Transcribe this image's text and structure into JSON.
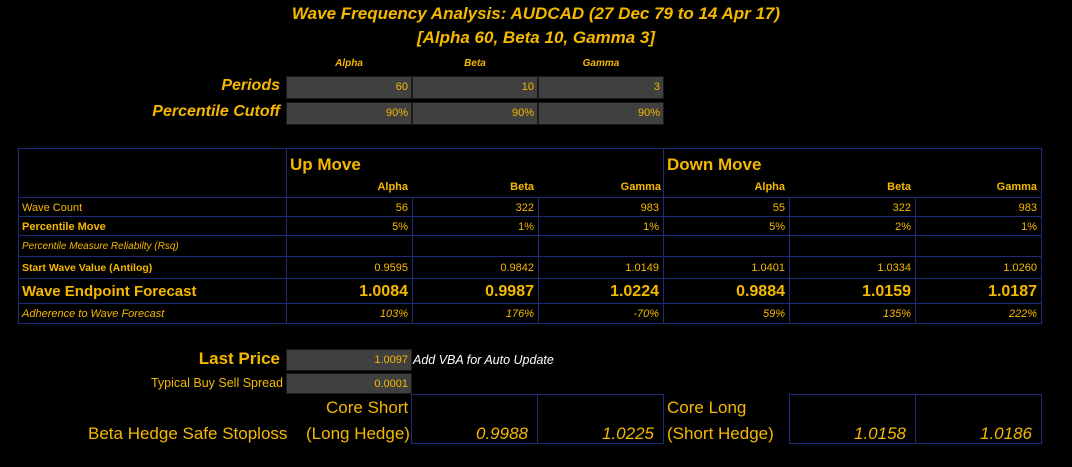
{
  "title": {
    "line1": "Wave Frequency Analysis: AUDCAD (27 Dec 79 to 14 Apr 17)",
    "line2": "[Alpha 60, Beta 10, Gamma 3]"
  },
  "params": {
    "col_headers": [
      "Alpha",
      "Beta",
      "Gamma"
    ],
    "periods_label": "Periods",
    "periods": [
      "60",
      "10",
      "3"
    ],
    "cutoff_label": "Percentile Cutoff",
    "cutoff": [
      "90%",
      "90%",
      "90%"
    ]
  },
  "table": {
    "up_title": "Up Move",
    "down_title": "Down Move",
    "col_headers": [
      "Alpha",
      "Beta",
      "Gamma",
      "Alpha",
      "Beta",
      "Gamma"
    ],
    "rows": [
      {
        "label": "Wave Count",
        "values": [
          "56",
          "322",
          "983",
          "55",
          "322",
          "983"
        ]
      },
      {
        "label": "Percentile Move",
        "values": [
          "5%",
          "1%",
          "1%",
          "5%",
          "2%",
          "1%"
        ]
      },
      {
        "label": "Percentile Measure Reliabilty (Rsq)",
        "values": [
          "",
          "",
          "",
          "",
          "",
          ""
        ]
      },
      {
        "label": "Start Wave Value (Antilog)",
        "values": [
          "0.9595",
          "0.9842",
          "1.0149",
          "1.0401",
          "1.0334",
          "1.0260"
        ]
      },
      {
        "label": "Wave Endpoint Forecast",
        "values": [
          "1.0084",
          "0.9987",
          "1.0224",
          "0.9884",
          "1.0159",
          "1.0187"
        ]
      },
      {
        "label": "Adherence to Wave Forecast",
        "values": [
          "103%",
          "176%",
          "-70%",
          "59%",
          "135%",
          "222%"
        ]
      }
    ]
  },
  "price": {
    "last_label": "Last Price",
    "last_value": "1.0097",
    "vba_note": "Add VBA for Auto Update",
    "spread_label": "Typical Buy Sell Spread",
    "spread_value": "0.0001"
  },
  "stoploss": {
    "label": "Beta Hedge Safe Stoploss",
    "core_short": "Core Short",
    "long_hedge": "(Long Hedge)",
    "short_values": [
      "0.9988",
      "1.0225"
    ],
    "core_long": "Core Long",
    "short_hedge": "(Short Hedge)",
    "long_values": [
      "1.0158",
      "1.0186"
    ]
  }
}
